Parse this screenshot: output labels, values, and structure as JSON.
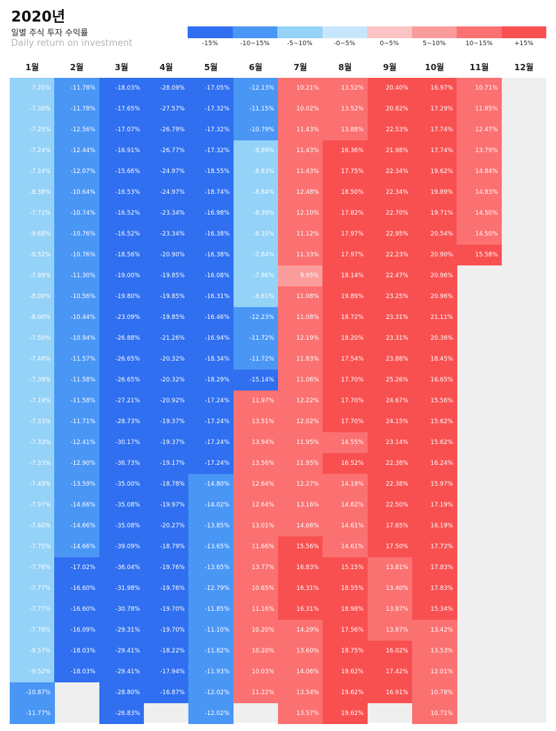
{
  "header": {
    "title": "2020년",
    "subtitle": "일별 주식 투자 수익률",
    "subtitle_en": "Daily return on investment"
  },
  "legend": [
    {
      "label": "-15%",
      "color": "#2f6ff0"
    },
    {
      "label": "-10~15%",
      "color": "#4a96f5"
    },
    {
      "label": "-5~10%",
      "color": "#94d2f8"
    },
    {
      "label": "-0~5%",
      "color": "#c7e6fb"
    },
    {
      "label": "0~5%",
      "color": "#fbc3c3"
    },
    {
      "label": "5~10%",
      "color": "#fb9c9c"
    },
    {
      "label": "10~15%",
      "color": "#fb7171"
    },
    {
      "label": "+15%",
      "color": "#f85050"
    }
  ],
  "empty_color": "#efefef",
  "chart_data": {
    "type": "heatmap",
    "title": "2020년",
    "months": [
      "1월",
      "2월",
      "3월",
      "4월",
      "5월",
      "6월",
      "7월",
      "8월",
      "9월",
      "10월",
      "11월",
      "12월"
    ],
    "series": [
      {
        "name": "1월",
        "values": [
          "-7.25%",
          "-7.30%",
          "-7.25%",
          "-7.24%",
          "-7.24%",
          "-8.38%",
          "-7.71%",
          "-9.68%",
          "-8.52%",
          "-7.99%",
          "-8.00%",
          "-8.00%",
          "-7.50%",
          "-7.48%",
          "-7.39%",
          "-7.19%",
          "-7.33%",
          "-7.33%",
          "-7.33%",
          "-7.49%",
          "-7.97%",
          "-7.60%",
          "-7.75%",
          "-7.76%",
          "-7.77%",
          "-7.77%",
          "-7.76%",
          "-9.57%",
          "-9.52%",
          "-10.87%",
          "-11.77%"
        ]
      },
      {
        "name": "2월",
        "values": [
          "-11.78%",
          "-11.78%",
          "-12.56%",
          "-12.44%",
          "-12.07%",
          "-10.64%",
          "-10.74%",
          "-10.76%",
          "-10.76%",
          "-11.30%",
          "-10.56%",
          "-10.44%",
          "-10.94%",
          "-11.57%",
          "-11.58%",
          "-11.58%",
          "-11.71%",
          "-12.41%",
          "-12.90%",
          "-13.59%",
          "-14.66%",
          "-14.66%",
          "-14.66%",
          "-17.02%",
          "-16.60%",
          "-16.60%",
          "-16.09%",
          "-18.03%",
          "-18.03%"
        ]
      },
      {
        "name": "3월",
        "values": [
          "-18.03%",
          "-17.65%",
          "-17.07%",
          "-16.91%",
          "-15.66%",
          "-16.53%",
          "-16.52%",
          "-16.52%",
          "-18.56%",
          "-19.00%",
          "-19.80%",
          "-23.09%",
          "-26.88%",
          "-26.65%",
          "-26.65%",
          "-27.21%",
          "-28.73%",
          "-30.17%",
          "-36.73%",
          "-35.00%",
          "-35.08%",
          "-35.08%",
          "-39.09%",
          "-36.04%",
          "-31.98%",
          "-30.78%",
          "-29.31%",
          "-29.41%",
          "-29.41%",
          "-28.80%",
          "-26.83%"
        ]
      },
      {
        "name": "4월",
        "values": [
          "-28.09%",
          "-27.57%",
          "-26.79%",
          "-26.77%",
          "-24.97%",
          "-24.97%",
          "-23.34%",
          "-23.34%",
          "-20.90%",
          "-19.85%",
          "-19.85%",
          "-19.85%",
          "-21.26%",
          "-20.32%",
          "-20.32%",
          "-20.92%",
          "-19.37%",
          "-19.37%",
          "-19.17%",
          "-18.78%",
          "-19.97%",
          "-20.27%",
          "-18.79%",
          "-19.76%",
          "-19.76%",
          "-19.70%",
          "-19.70%",
          "-18.22%",
          "-17.94%",
          "-16.87%"
        ]
      },
      {
        "name": "5월",
        "values": [
          "-17.05%",
          "-17.32%",
          "-17.32%",
          "-17.32%",
          "-18.55%",
          "-18.74%",
          "-16.98%",
          "-16.38%",
          "-16.38%",
          "-16.08%",
          "-16.31%",
          "-16.46%",
          "-16.94%",
          "-18.34%",
          "-18.29%",
          "-17.24%",
          "-17.24%",
          "-17.24%",
          "-17.24%",
          "-14.80%",
          "-14.02%",
          "-13.85%",
          "-13.65%",
          "-13.65%",
          "-12.79%",
          "-11.85%",
          "-11.10%",
          "-11.82%",
          "-11.93%",
          "-12.02%",
          "-12.02%"
        ]
      },
      {
        "name": "6월",
        "values": [
          "-12.13%",
          "-11.15%",
          "-10.79%",
          "-9.89%",
          "-8.83%",
          "-8.84%",
          "-8.39%",
          "-8.10%",
          "-7.84%",
          "-7.86%",
          "-9.61%",
          "-12.23%",
          "-11.72%",
          "-11.72%",
          "-15.14%",
          "11.97%",
          "13.51%",
          "13.94%",
          "13.56%",
          "12.64%",
          "12.64%",
          "13.01%",
          "11.66%",
          "13.77%",
          "10.65%",
          "11.16%",
          "10.20%",
          "10.20%",
          "10.03%",
          "11.22%"
        ]
      },
      {
        "name": "7월",
        "values": [
          "10.21%",
          "10.02%",
          "11.43%",
          "11.43%",
          "11.43%",
          "12.48%",
          "12.10%",
          "11.12%",
          "11.33%",
          "9.95%",
          "11.08%",
          "11.08%",
          "12.19%",
          "11.83%",
          "11.06%",
          "12.22%",
          "12.02%",
          "11.95%",
          "11.95%",
          "12.27%",
          "13.16%",
          "14.66%",
          "15.56%",
          "16.83%",
          "16.31%",
          "16.31%",
          "14.29%",
          "13.60%",
          "14.06%",
          "13.54%",
          "13.57%"
        ]
      },
      {
        "name": "8월",
        "values": [
          "13.52%",
          "13.52%",
          "13.88%",
          "16.36%",
          "17.75%",
          "18.50%",
          "17.82%",
          "17.97%",
          "17.97%",
          "18.14%",
          "19.89%",
          "18.72%",
          "18.20%",
          "17.54%",
          "17.70%",
          "17.70%",
          "17.70%",
          "14.55%",
          "16.52%",
          "14.19%",
          "14.82%",
          "14.61%",
          "14.61%",
          "15.15%",
          "18.55%",
          "18.98%",
          "17.56%",
          "18.75%",
          "19.62%",
          "19.62%",
          "19.62%"
        ]
      },
      {
        "name": "9월",
        "values": [
          "20.40%",
          "20.82%",
          "22.53%",
          "21.98%",
          "22.34%",
          "22.34%",
          "22.70%",
          "22.95%",
          "22.23%",
          "22.47%",
          "23.25%",
          "23.31%",
          "23.31%",
          "23.88%",
          "25.26%",
          "24.67%",
          "24.15%",
          "23.14%",
          "22.38%",
          "22.38%",
          "22.50%",
          "17.65%",
          "17.50%",
          "13.81%",
          "13.40%",
          "13.87%",
          "13.87%",
          "16.02%",
          "17.42%",
          "16.91%"
        ]
      },
      {
        "name": "10월",
        "values": [
          "16.97%",
          "17.29%",
          "17.74%",
          "17.74%",
          "19.62%",
          "19.89%",
          "19.71%",
          "20.54%",
          "20.90%",
          "20.96%",
          "20.96%",
          "21.11%",
          "20.36%",
          "18.45%",
          "16.65%",
          "15.56%",
          "15.62%",
          "15.62%",
          "16.24%",
          "15.97%",
          "17.19%",
          "16.19%",
          "17.72%",
          "17.83%",
          "17.83%",
          "15.34%",
          "13.42%",
          "13.53%",
          "12.01%",
          "10.78%",
          "10.71%"
        ]
      },
      {
        "name": "11월",
        "values": [
          "10.71%",
          "11.85%",
          "12.47%",
          "13.79%",
          "14.84%",
          "14.83%",
          "14.50%",
          "14.50%",
          "15.58%"
        ]
      },
      {
        "name": "12월",
        "values": []
      }
    ]
  }
}
